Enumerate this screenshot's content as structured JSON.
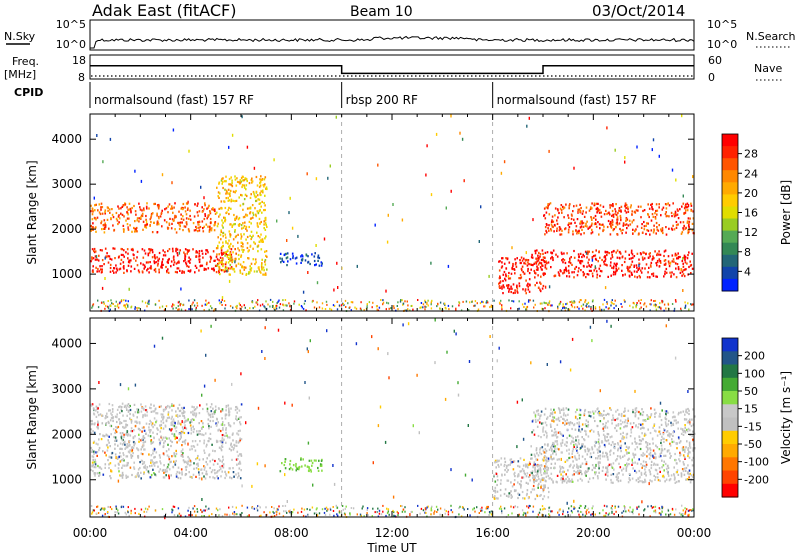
{
  "header": {
    "site": "Adak East (fitACF)",
    "beam": "Beam 10",
    "date": "03/Oct/2014"
  },
  "noise_panel": {
    "left_label": "N.Sky",
    "right_label": "N.Search",
    "left_ticks": [
      "10^5",
      "10^0"
    ],
    "right_ticks": [
      "10^5",
      "10^0"
    ]
  },
  "freq_panel": {
    "left_label": "Freq.",
    "left_unit": "[MHz]",
    "right_label": "Nave",
    "left_ticks": [
      "18",
      "8"
    ],
    "right_ticks": [
      "60",
      "0"
    ],
    "freq_mhz": [
      {
        "start_h": 0,
        "end_h": 10,
        "value": 14.6
      },
      {
        "start_h": 10,
        "end_h": 18,
        "value": 10.8
      },
      {
        "start_h": 18,
        "end_h": 24,
        "value": 14.6
      }
    ]
  },
  "cpid": {
    "label": "CPID",
    "segments": [
      {
        "start_h": 0,
        "end_h": 10,
        "text": "normalsound (fast) 157 RF"
      },
      {
        "start_h": 10,
        "end_h": 16,
        "text": "rbsp 200 RF"
      },
      {
        "start_h": 16,
        "end_h": 24,
        "text": "normalsound (fast) 157 RF"
      }
    ]
  },
  "chart_data": [
    {
      "type": "heatmap",
      "name": "power",
      "ylabel": "Slant Range [km]",
      "xlabel": "Time UT",
      "x_ticks": [
        "00:00",
        "04:00",
        "08:00",
        "12:00",
        "16:00",
        "20:00",
        "00:00"
      ],
      "x_range_h": [
        0,
        24
      ],
      "y_ticks": [
        1000,
        2000,
        3000,
        4000
      ],
      "ylim": [
        180,
        4560
      ],
      "colorbar": {
        "label": "Power [dB]",
        "ticks": [
          "28",
          "24",
          "20",
          "16",
          "12",
          "8",
          "4"
        ],
        "colors": [
          "#ff0000",
          "#ff2200",
          "#ff5500",
          "#ff8800",
          "#ffaa00",
          "#ffcc00",
          "#e0dd00",
          "#99cc22",
          "#55aa55",
          "#338855",
          "#226677",
          "#1144aa",
          "#0022ff"
        ]
      },
      "features": [
        {
          "t0": 0,
          "t1": 5.8,
          "r0": 1050,
          "r1": 1600,
          "level": 0.95
        },
        {
          "t0": 0,
          "t1": 5,
          "r0": 1950,
          "r1": 2600,
          "level": 0.8
        },
        {
          "t0": 5,
          "t1": 7,
          "r0": 1000,
          "r1": 3200,
          "level": 0.6
        },
        {
          "t0": 7.5,
          "t1": 9.2,
          "r0": 1200,
          "r1": 1500,
          "level": 0.1
        },
        {
          "t0": 16.2,
          "t1": 18,
          "r0": 600,
          "r1": 1400,
          "level": 0.95
        },
        {
          "t0": 17.5,
          "t1": 24,
          "r0": 950,
          "r1": 1550,
          "level": 0.95
        },
        {
          "t0": 18,
          "t1": 24,
          "r0": 1900,
          "r1": 2600,
          "level": 0.85
        }
      ]
    },
    {
      "type": "heatmap",
      "name": "velocity",
      "ylabel": "Slant Range [km]",
      "xlabel": "Time UT",
      "x_ticks": [
        "00:00",
        "04:00",
        "08:00",
        "12:00",
        "16:00",
        "20:00",
        "00:00"
      ],
      "x_range_h": [
        0,
        24
      ],
      "y_ticks": [
        1000,
        2000,
        3000,
        4000
      ],
      "ylim": [
        180,
        4560
      ],
      "colorbar": {
        "label": "Velocity [m s⁻¹]",
        "ticks": [
          "200",
          "100",
          "50",
          "15",
          "-15",
          "-50",
          "-100",
          "-200"
        ],
        "colors": [
          "#1133cc",
          "#225588",
          "#227744",
          "#44aa33",
          "#88dd44",
          "#c8c8c8",
          "#c0c0c0",
          "#ffcc00",
          "#ffaa00",
          "#ff7700",
          "#ff4400",
          "#ff0000"
        ]
      },
      "features": [
        {
          "t0": 0,
          "t1": 6,
          "r0": 1050,
          "r1": 2700,
          "level": 0.5
        },
        {
          "t0": 7.5,
          "t1": 9.2,
          "r0": 1200,
          "r1": 1500,
          "level": 0.3
        },
        {
          "t0": 16,
          "t1": 18.2,
          "r0": 600,
          "r1": 1500,
          "level": 0.5
        },
        {
          "t0": 17.5,
          "t1": 24,
          "r0": 950,
          "r1": 2600,
          "level": 0.5
        }
      ]
    }
  ]
}
